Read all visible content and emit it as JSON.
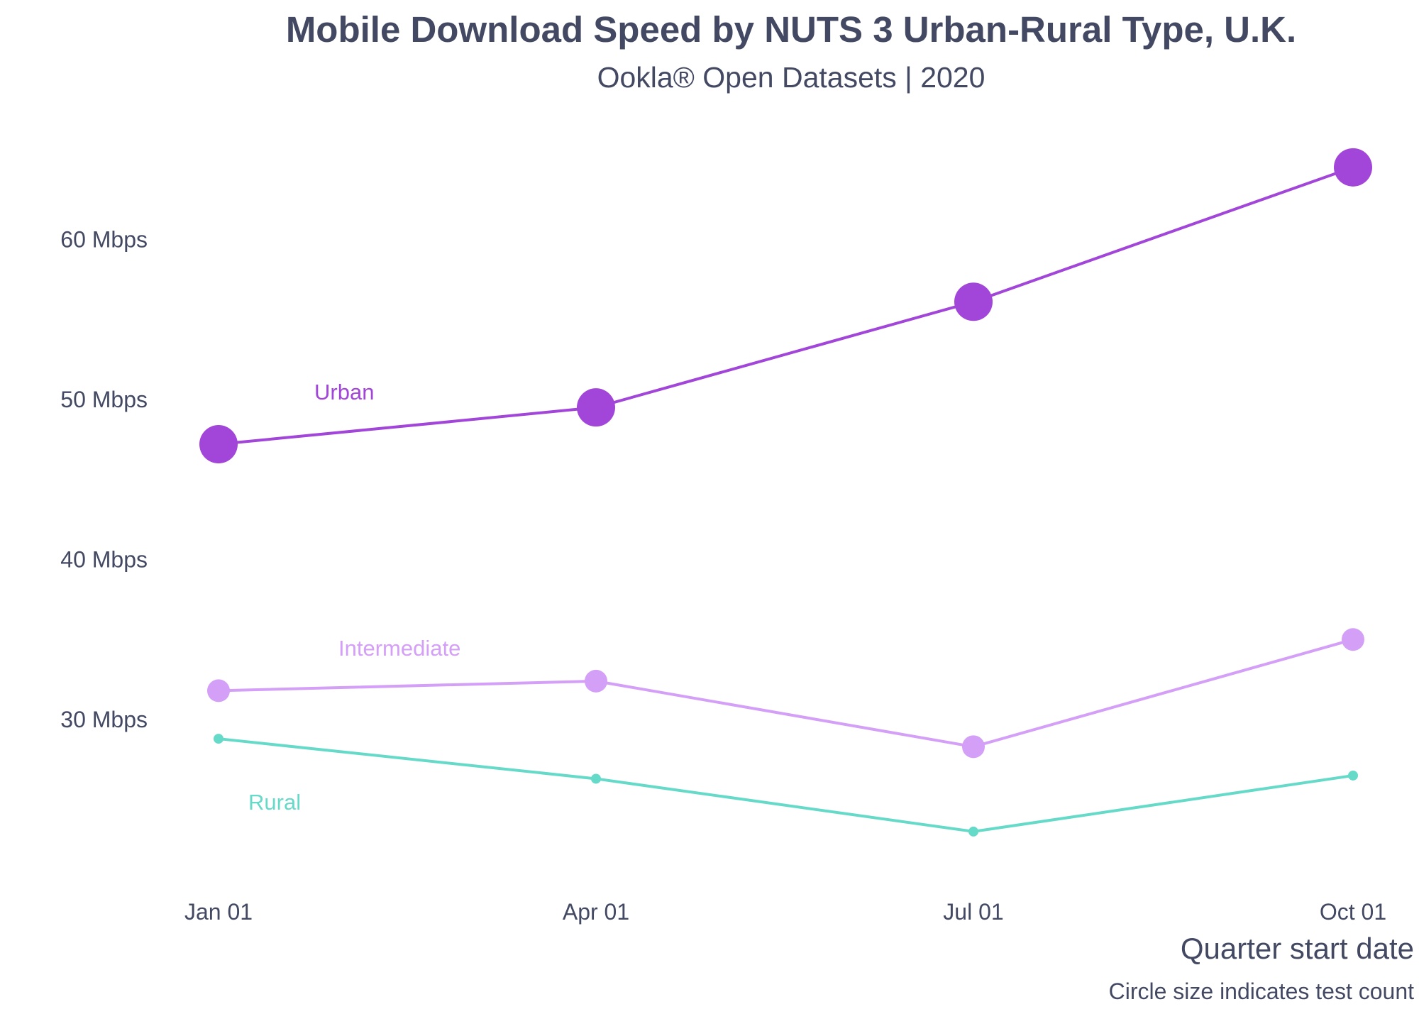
{
  "title": "Mobile Download Speed by NUTS 3 Urban-Rural Type, U.K.",
  "subtitle": "Ookla® Open Datasets | 2020",
  "chart_data": {
    "type": "line",
    "x": [
      "Jan 01",
      "Apr 01",
      "Jul 01",
      "Oct 01"
    ],
    "xlabel": "Quarter start date",
    "ylabel": "",
    "y_ticks": [
      30,
      40,
      50,
      60
    ],
    "y_tick_labels": [
      "30 Mbps",
      "40 Mbps",
      "50 Mbps",
      "60 Mbps"
    ],
    "ylim": [
      21,
      66
    ],
    "grid": false,
    "caption": "Circle size indicates test count",
    "series": [
      {
        "name": "Urban",
        "values": [
          47.2,
          49.5,
          56.1,
          64.5
        ],
        "color": "#a245d9",
        "marker_size": [
          3,
          3,
          3,
          3
        ]
      },
      {
        "name": "Intermediate",
        "values": [
          31.8,
          32.4,
          28.3,
          35.0
        ],
        "color": "#d49ff7",
        "marker_size": [
          2,
          2,
          2,
          2
        ]
      },
      {
        "name": "Rural",
        "values": [
          28.8,
          26.3,
          23.0,
          26.5
        ],
        "color": "#66dac9",
        "marker_size": [
          1,
          1,
          1,
          1
        ]
      }
    ]
  }
}
